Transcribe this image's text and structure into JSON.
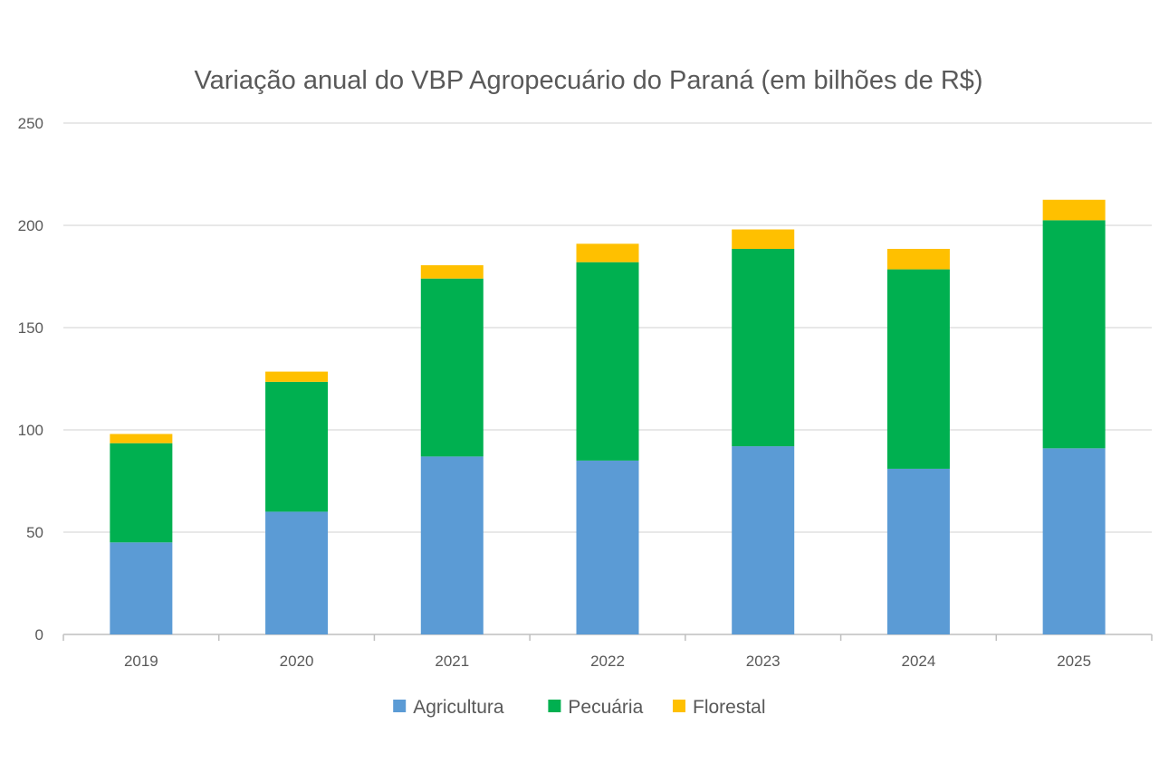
{
  "chart_data": {
    "type": "bar",
    "stacked": true,
    "title": "Variação anual do VBP Agropecuário do Paraná (em bilhões de R$)",
    "xlabel": "",
    "ylabel": "",
    "categories": [
      "2019",
      "2020",
      "2021",
      "2022",
      "2023",
      "2024",
      "2025"
    ],
    "ylim": [
      0,
      250
    ],
    "yticks": [
      "0",
      "50",
      "100",
      "150",
      "200",
      "250"
    ],
    "grid": true,
    "legend_position": "bottom",
    "series": [
      {
        "name": "Agricultura",
        "color": "#5b9bd5",
        "values": [
          45,
          60,
          87,
          85,
          92,
          81,
          91
        ]
      },
      {
        "name": "Pecuária",
        "color": "#00b050",
        "values": [
          48.5,
          63.5,
          87,
          97,
          96.5,
          97.5,
          111.5
        ]
      },
      {
        "name": "Florestal",
        "color": "#ffc000",
        "values": [
          4.5,
          5,
          6.5,
          9,
          9.5,
          10,
          10
        ]
      }
    ]
  }
}
